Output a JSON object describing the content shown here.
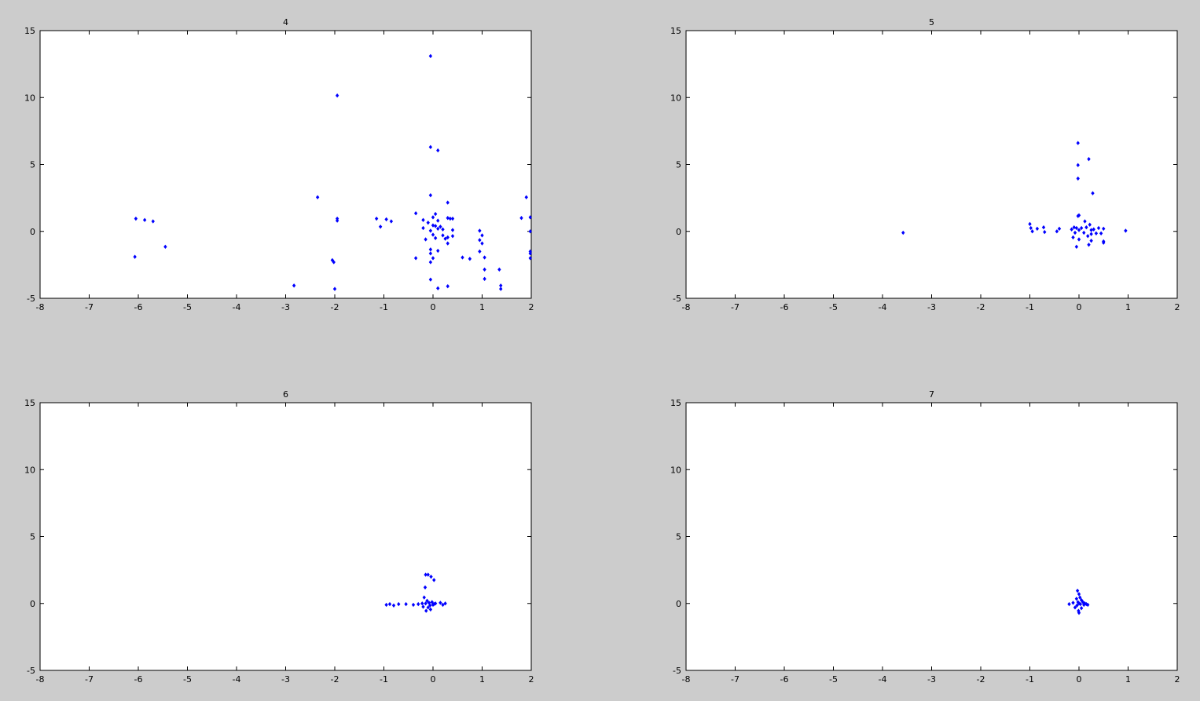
{
  "figure": {
    "background": "#cccccc",
    "marker_color": "#0000ff"
  },
  "chart_data": [
    {
      "type": "scatter",
      "title": "4",
      "xlim": [
        -8,
        2
      ],
      "ylim": [
        -5,
        15
      ],
      "xticks": [
        -8,
        -7,
        -6,
        -5,
        -4,
        -3,
        -2,
        -1,
        0,
        1,
        2
      ],
      "yticks": [
        -5,
        0,
        5,
        10,
        15
      ],
      "grid": false,
      "series": [
        {
          "points": [
            [
              -6.05,
              0.95
            ],
            [
              -5.87,
              0.85
            ],
            [
              -5.7,
              0.75
            ],
            [
              -6.07,
              -1.9
            ],
            [
              -5.45,
              -1.15
            ],
            [
              -2.83,
              -4.05
            ],
            [
              -2.35,
              2.55
            ],
            [
              -2.05,
              -2.15
            ],
            [
              -2.02,
              -2.3
            ],
            [
              -2.0,
              -4.3
            ],
            [
              -1.95,
              10.15
            ],
            [
              -1.95,
              0.95
            ],
            [
              -1.95,
              0.8
            ],
            [
              -1.15,
              0.95
            ],
            [
              -1.07,
              0.35
            ],
            [
              -0.95,
              0.9
            ],
            [
              -0.85,
              0.75
            ],
            [
              -0.35,
              1.35
            ],
            [
              -0.35,
              -2.0
            ],
            [
              -0.2,
              0.85
            ],
            [
              -0.2,
              0.25
            ],
            [
              -0.15,
              -0.6
            ],
            [
              -0.1,
              0.65
            ],
            [
              -0.05,
              13.1
            ],
            [
              -0.05,
              6.3
            ],
            [
              -0.05,
              2.7
            ],
            [
              -0.05,
              -3.6
            ],
            [
              -0.05,
              0.05
            ],
            [
              -0.05,
              -1.35
            ],
            [
              -0.05,
              -1.65
            ],
            [
              -0.05,
              -2.3
            ],
            [
              0.0,
              1.05
            ],
            [
              0.0,
              0.45
            ],
            [
              0.0,
              -0.25
            ],
            [
              0.0,
              -2.0
            ],
            [
              0.05,
              1.3
            ],
            [
              0.05,
              0.4
            ],
            [
              0.05,
              -0.5
            ],
            [
              0.1,
              6.05
            ],
            [
              0.1,
              0.8
            ],
            [
              0.1,
              0.2
            ],
            [
              0.1,
              -1.45
            ],
            [
              0.1,
              -4.25
            ],
            [
              0.15,
              0.35
            ],
            [
              0.2,
              0.15
            ],
            [
              0.2,
              -0.3
            ],
            [
              0.25,
              -0.55
            ],
            [
              0.3,
              2.15
            ],
            [
              0.3,
              1.0
            ],
            [
              0.3,
              -0.45
            ],
            [
              0.3,
              -0.9
            ],
            [
              0.3,
              -4.1
            ],
            [
              0.35,
              0.95
            ],
            [
              0.4,
              0.95
            ],
            [
              0.4,
              0.1
            ],
            [
              0.4,
              -0.35
            ],
            [
              0.6,
              -1.95
            ],
            [
              0.75,
              -2.05
            ],
            [
              0.95,
              0.05
            ],
            [
              0.95,
              -0.65
            ],
            [
              0.95,
              -1.5
            ],
            [
              1.0,
              -0.3
            ],
            [
              1.0,
              -0.9
            ],
            [
              1.05,
              -1.95
            ],
            [
              1.05,
              -2.85
            ],
            [
              1.05,
              -3.55
            ],
            [
              1.35,
              -2.85
            ],
            [
              1.38,
              -4.05
            ],
            [
              1.38,
              -4.3
            ],
            [
              1.8,
              1.0
            ],
            [
              1.9,
              2.55
            ],
            [
              1.98,
              1.05
            ],
            [
              1.98,
              0.0
            ],
            [
              1.98,
              -1.5
            ],
            [
              1.98,
              -1.65
            ],
            [
              1.98,
              -2.0
            ]
          ]
        }
      ]
    },
    {
      "type": "scatter",
      "title": "5",
      "xlim": [
        -8,
        2
      ],
      "ylim": [
        -5,
        15
      ],
      "xticks": [
        -8,
        -7,
        -6,
        -5,
        -4,
        -3,
        -2,
        -1,
        0,
        1,
        2
      ],
      "yticks": [
        -5,
        0,
        5,
        10,
        15
      ],
      "grid": false,
      "series": [
        {
          "points": [
            [
              -3.58,
              -0.1
            ],
            [
              -1.0,
              0.55
            ],
            [
              -0.98,
              0.25
            ],
            [
              -0.95,
              0.0
            ],
            [
              -0.85,
              0.2
            ],
            [
              -0.72,
              0.3
            ],
            [
              -0.7,
              -0.05
            ],
            [
              -0.45,
              0.0
            ],
            [
              -0.4,
              0.2
            ],
            [
              -0.15,
              0.15
            ],
            [
              -0.12,
              -0.45
            ],
            [
              -0.1,
              0.3
            ],
            [
              -0.08,
              -0.1
            ],
            [
              -0.05,
              0.25
            ],
            [
              -0.05,
              -1.15
            ],
            [
              -0.02,
              6.6
            ],
            [
              -0.02,
              4.95
            ],
            [
              -0.02,
              3.95
            ],
            [
              -0.02,
              1.15
            ],
            [
              0.0,
              1.2
            ],
            [
              0.0,
              0.1
            ],
            [
              0.0,
              -0.6
            ],
            [
              0.05,
              0.25
            ],
            [
              0.1,
              -0.1
            ],
            [
              0.12,
              0.75
            ],
            [
              0.15,
              0.3
            ],
            [
              0.18,
              -0.35
            ],
            [
              0.2,
              -1.0
            ],
            [
              0.2,
              5.4
            ],
            [
              0.22,
              0.5
            ],
            [
              0.25,
              0.1
            ],
            [
              0.25,
              -0.2
            ],
            [
              0.25,
              -0.7
            ],
            [
              0.28,
              2.85
            ],
            [
              0.3,
              0.15
            ],
            [
              0.35,
              -0.15
            ],
            [
              0.4,
              0.25
            ],
            [
              0.45,
              -0.15
            ],
            [
              0.5,
              0.2
            ],
            [
              0.5,
              -0.75
            ],
            [
              0.5,
              -0.85
            ],
            [
              0.95,
              0.05
            ]
          ]
        }
      ]
    },
    {
      "type": "scatter",
      "title": "6",
      "xlim": [
        -8,
        2
      ],
      "ylim": [
        -5,
        15
      ],
      "xticks": [
        -8,
        -7,
        -6,
        -5,
        -4,
        -3,
        -2,
        -1,
        0,
        1,
        2
      ],
      "yticks": [
        -5,
        0,
        5,
        10,
        15
      ],
      "grid": false,
      "series": [
        {
          "points": [
            [
              -0.95,
              -0.1
            ],
            [
              -0.88,
              -0.05
            ],
            [
              -0.8,
              -0.15
            ],
            [
              -0.7,
              -0.05
            ],
            [
              -0.55,
              -0.05
            ],
            [
              -0.4,
              -0.1
            ],
            [
              -0.3,
              -0.05
            ],
            [
              -0.22,
              0.0
            ],
            [
              -0.2,
              -0.25
            ],
            [
              -0.18,
              0.45
            ],
            [
              -0.16,
              1.2
            ],
            [
              -0.15,
              2.15
            ],
            [
              -0.15,
              0.0
            ],
            [
              -0.14,
              -0.55
            ],
            [
              -0.12,
              0.2
            ],
            [
              -0.1,
              -0.3
            ],
            [
              -0.1,
              2.15
            ],
            [
              -0.08,
              0.05
            ],
            [
              -0.06,
              -0.15
            ],
            [
              -0.05,
              -0.45
            ],
            [
              -0.04,
              2.0
            ],
            [
              -0.02,
              0.1
            ],
            [
              0.0,
              -0.1
            ],
            [
              0.02,
              1.75
            ],
            [
              0.02,
              -0.05
            ],
            [
              0.05,
              0.0
            ],
            [
              0.15,
              0.05
            ],
            [
              0.2,
              -0.1
            ],
            [
              0.25,
              0.0
            ]
          ]
        }
      ]
    },
    {
      "type": "scatter",
      "title": "7",
      "xlim": [
        -8,
        2
      ],
      "ylim": [
        -5,
        15
      ],
      "xticks": [
        -8,
        -7,
        -6,
        -5,
        -4,
        -3,
        -2,
        -1,
        0,
        1,
        2
      ],
      "yticks": [
        -5,
        0,
        5,
        10,
        15
      ],
      "grid": false,
      "series": [
        {
          "points": [
            [
              -0.2,
              -0.05
            ],
            [
              -0.12,
              0.05
            ],
            [
              -0.08,
              -0.3
            ],
            [
              -0.05,
              0.35
            ],
            [
              -0.04,
              -0.15
            ],
            [
              -0.03,
              0.95
            ],
            [
              -0.02,
              0.1
            ],
            [
              -0.01,
              -0.55
            ],
            [
              0.0,
              0.7
            ],
            [
              0.0,
              0.0
            ],
            [
              0.0,
              -0.7
            ],
            [
              0.02,
              0.45
            ],
            [
              0.03,
              -0.05
            ],
            [
              0.05,
              0.25
            ],
            [
              0.05,
              -0.35
            ],
            [
              0.08,
              0.1
            ],
            [
              0.1,
              -0.1
            ],
            [
              0.12,
              0.0
            ],
            [
              0.15,
              -0.05
            ],
            [
              0.18,
              -0.1
            ]
          ]
        }
      ]
    }
  ]
}
